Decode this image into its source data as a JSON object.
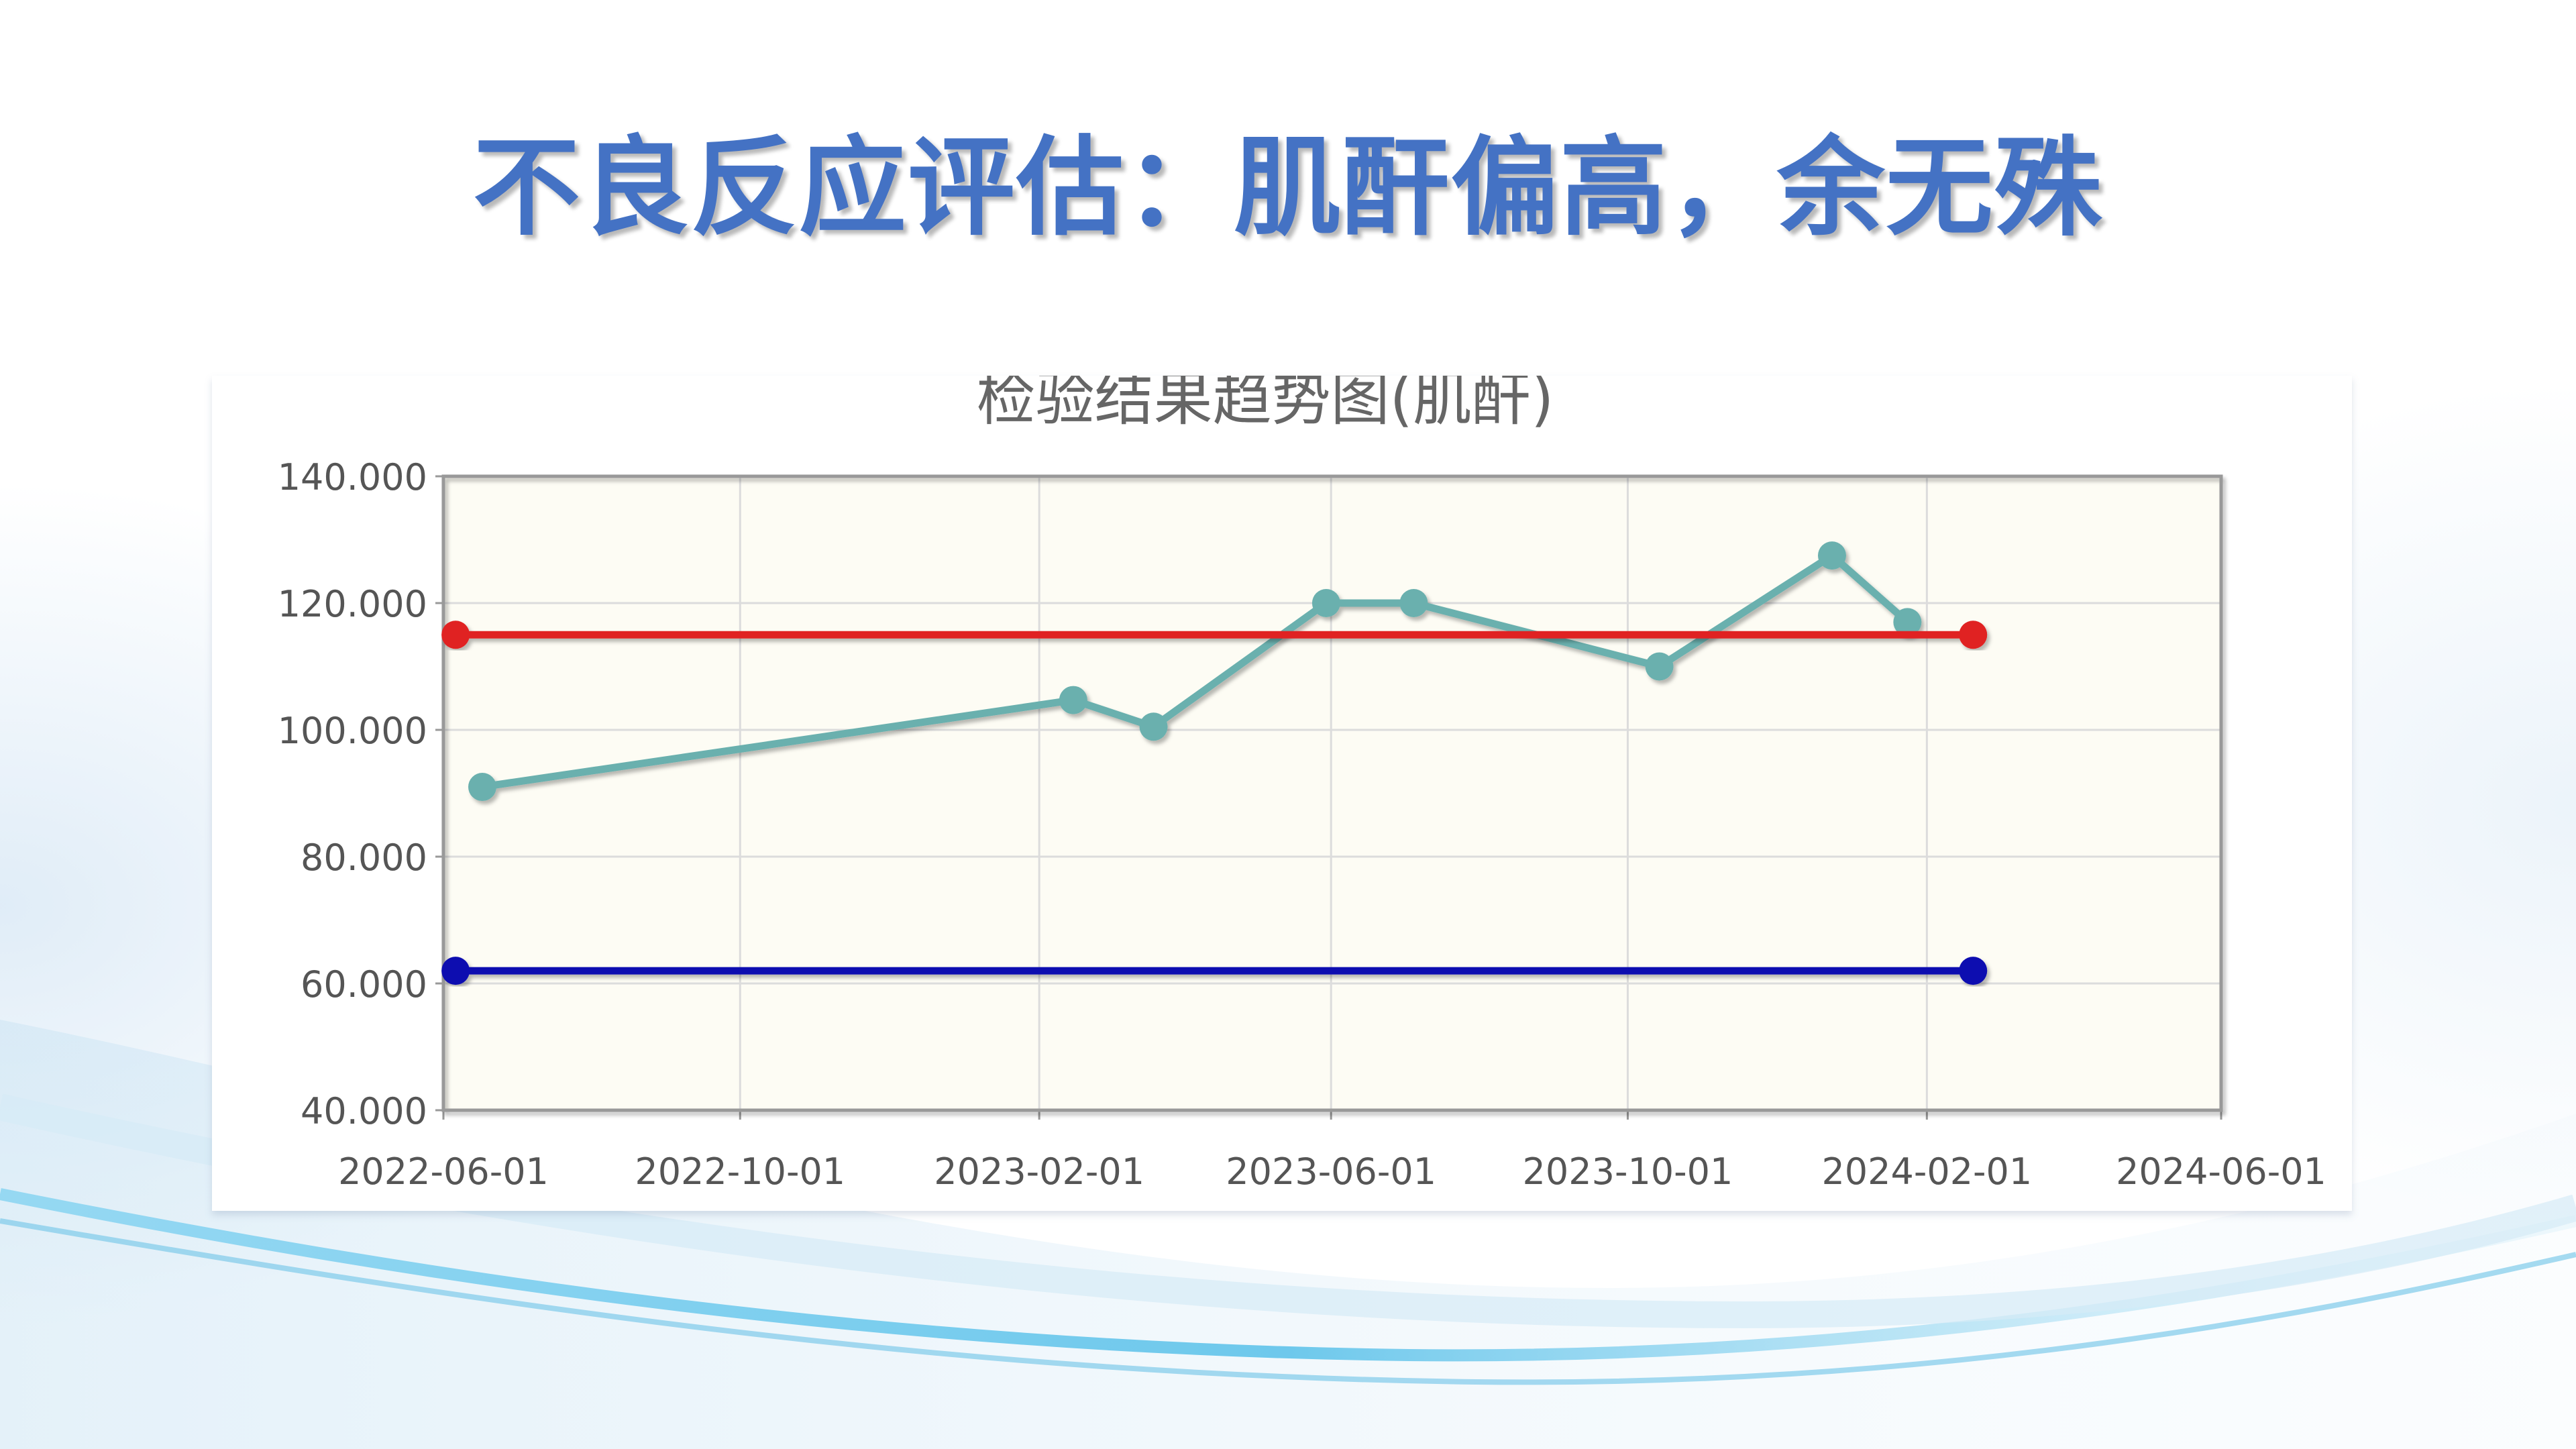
{
  "slide": {
    "title": "不良反应评估：肌酐偏高，余无殊"
  },
  "chart_data": {
    "type": "line",
    "title": "检验结果趋势图(肌酐)",
    "xlabel": "",
    "ylabel": "",
    "x_ticks": [
      "2022-06-01",
      "2022-10-01",
      "2023-02-01",
      "2023-06-01",
      "2023-10-01",
      "2024-02-01",
      "2024-06-01"
    ],
    "y_ticks": [
      "140.000",
      "120.000",
      "100.000",
      "80.000",
      "60.000",
      "40.000"
    ],
    "xlim": [
      "2022-06-01",
      "2024-06-01"
    ],
    "ylim": [
      40,
      140
    ],
    "grid": true,
    "series": [
      {
        "color": "#6ab0ae",
        "points": [
          {
            "x": "2022-06-17",
            "y": 91
          },
          {
            "x": "2023-02-15",
            "y": 104.7
          },
          {
            "x": "2023-03-20",
            "y": 100.5
          },
          {
            "x": "2023-05-30",
            "y": 120
          },
          {
            "x": "2023-07-05",
            "y": 120
          },
          {
            "x": "2023-10-14",
            "y": 110
          },
          {
            "x": "2023-12-24",
            "y": 127.5
          },
          {
            "x": "2024-01-24",
            "y": 117
          }
        ]
      },
      {
        "color": "#e02020",
        "points": [
          {
            "x": "2022-06-06",
            "y": 115
          },
          {
            "x": "2024-02-20",
            "y": 115
          }
        ]
      },
      {
        "color": "#1010b0",
        "points": [
          {
            "x": "2022-06-06",
            "y": 62
          },
          {
            "x": "2024-02-20",
            "y": 62
          }
        ]
      }
    ]
  }
}
